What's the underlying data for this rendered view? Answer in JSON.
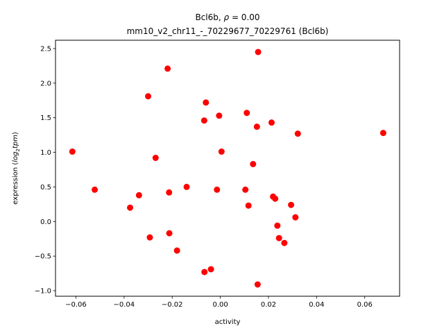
{
  "chart_data": {
    "type": "scatter",
    "title_line1_prefix": "Bcl6b, ",
    "title_line1_symbol": "ρ",
    "title_line1_suffix": " = 0.00",
    "title_line2": "mm10_v2_chr11_-_70229677_70229761 (Bcl6b)",
    "xlabel": "activity",
    "ylabel_prefix": "expression (",
    "ylabel_log": "log",
    "ylabel_sub": "2",
    "ylabel_tpm": "tpm",
    "ylabel_suffix": ")",
    "xlim": [
      -0.0685,
      0.0745
    ],
    "ylim": [
      -1.08,
      2.62
    ],
    "x_ticks": [
      {
        "value": -0.06,
        "label": "−0.06"
      },
      {
        "value": -0.04,
        "label": "−0.04"
      },
      {
        "value": -0.02,
        "label": "−0.02"
      },
      {
        "value": 0.0,
        "label": "0.00"
      },
      {
        "value": 0.02,
        "label": "0.02"
      },
      {
        "value": 0.04,
        "label": "0.04"
      },
      {
        "value": 0.06,
        "label": "0.06"
      }
    ],
    "y_ticks": [
      {
        "value": -1.0,
        "label": "−1.0"
      },
      {
        "value": -0.5,
        "label": "−0.5"
      },
      {
        "value": 0.0,
        "label": "0.0"
      },
      {
        "value": 0.5,
        "label": "0.5"
      },
      {
        "value": 1.0,
        "label": "1.0"
      },
      {
        "value": 1.5,
        "label": "1.5"
      },
      {
        "value": 2.0,
        "label": "2.0"
      },
      {
        "value": 2.5,
        "label": "2.5"
      }
    ],
    "grid": false,
    "point_color": "#ff0000",
    "points": [
      {
        "x": -0.0615,
        "y": 1.01
      },
      {
        "x": -0.0522,
        "y": 0.46
      },
      {
        "x": -0.0375,
        "y": 0.2
      },
      {
        "x": -0.0338,
        "y": 0.38
      },
      {
        "x": -0.03,
        "y": 1.81
      },
      {
        "x": -0.0293,
        "y": -0.23
      },
      {
        "x": -0.0269,
        "y": 0.92
      },
      {
        "x": -0.0219,
        "y": 2.21
      },
      {
        "x": -0.0213,
        "y": 0.42
      },
      {
        "x": -0.0212,
        "y": -0.17
      },
      {
        "x": -0.018,
        "y": -0.42
      },
      {
        "x": -0.014,
        "y": 0.5
      },
      {
        "x": -0.0067,
        "y": 1.46
      },
      {
        "x": -0.006,
        "y": 1.72
      },
      {
        "x": -0.0066,
        "y": -0.73
      },
      {
        "x": -0.0039,
        "y": -0.69
      },
      {
        "x": -0.0014,
        "y": 0.46
      },
      {
        "x": -0.0005,
        "y": 1.53
      },
      {
        "x": 0.0005,
        "y": 1.01
      },
      {
        "x": 0.0104,
        "y": 0.46
      },
      {
        "x": 0.011,
        "y": 1.57
      },
      {
        "x": 0.0117,
        "y": 0.23
      },
      {
        "x": 0.0136,
        "y": 0.83
      },
      {
        "x": 0.0152,
        "y": 1.37
      },
      {
        "x": 0.0157,
        "y": 2.45
      },
      {
        "x": 0.0155,
        "y": -0.91
      },
      {
        "x": 0.0213,
        "y": 1.43
      },
      {
        "x": 0.0219,
        "y": 0.36
      },
      {
        "x": 0.0228,
        "y": 0.33
      },
      {
        "x": 0.0237,
        "y": -0.06
      },
      {
        "x": 0.0244,
        "y": -0.24
      },
      {
        "x": 0.0266,
        "y": -0.31
      },
      {
        "x": 0.0294,
        "y": 0.24
      },
      {
        "x": 0.0312,
        "y": 0.06
      },
      {
        "x": 0.0322,
        "y": 1.27
      },
      {
        "x": 0.0677,
        "y": 1.28
      }
    ]
  }
}
